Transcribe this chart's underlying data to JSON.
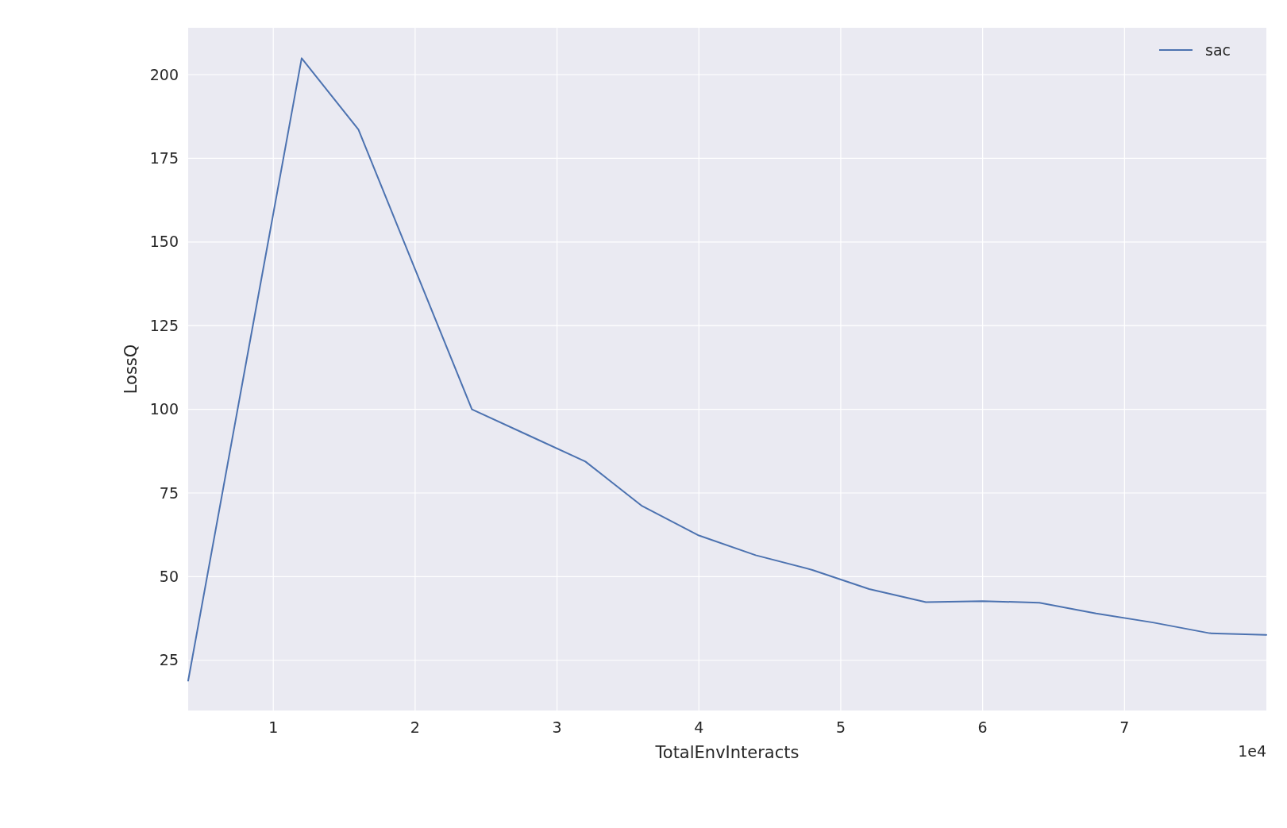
{
  "chart_data": {
    "type": "line",
    "xlabel": "TotalEnvInteracts",
    "ylabel": "LossQ",
    "x": [
      0.4,
      0.8,
      1.2,
      1.6,
      2.0,
      2.4,
      2.8,
      3.2,
      3.6,
      4.0,
      4.4,
      4.8,
      5.2,
      5.6,
      6.0,
      6.4,
      6.8,
      7.2,
      7.6,
      8.0
    ],
    "series": [
      {
        "name": "sac",
        "color": "#4c72b0",
        "values": [
          18.9,
          112,
          204.9,
          183.6,
          141.8,
          100,
          92.2,
          84.4,
          71.1,
          62.3,
          56.4,
          52,
          46.3,
          42.4,
          42.7,
          42.2,
          39,
          36.3,
          33.1,
          32.6
        ]
      }
    ],
    "xlim": [
      0.4,
      8.0
    ],
    "xticks": [
      1,
      2,
      3,
      4,
      5,
      6,
      7
    ],
    "ylim": [
      10,
      214
    ],
    "yticks": [
      25,
      50,
      75,
      100,
      125,
      150,
      175,
      200
    ],
    "annotations": [
      "1e4"
    ],
    "grid": true,
    "legend": "top right"
  }
}
